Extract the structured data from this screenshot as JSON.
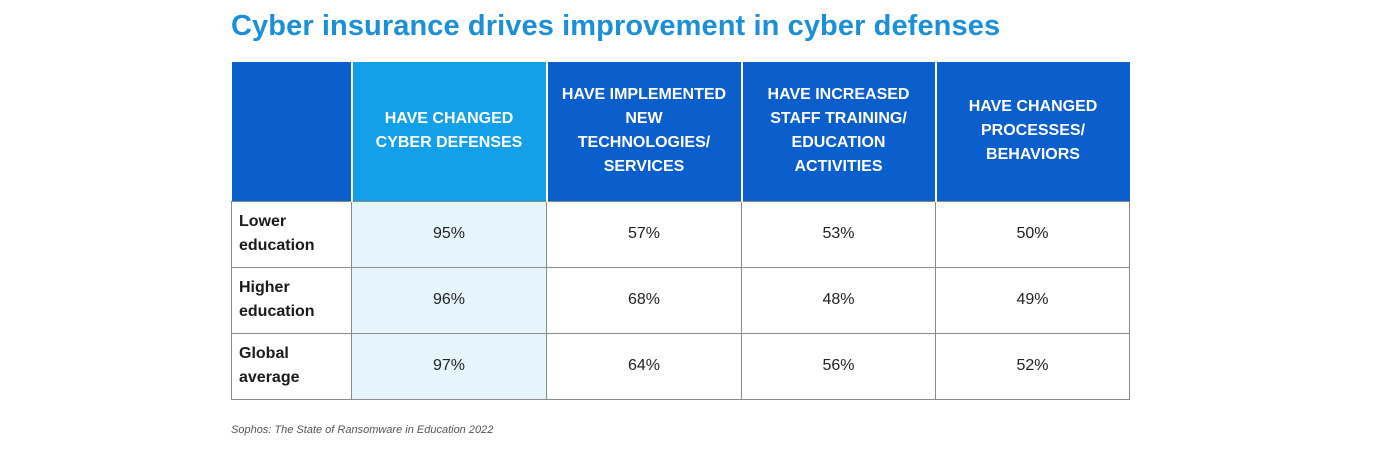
{
  "chart_data": {
    "type": "table",
    "title": "Cyber insurance drives improvement in cyber defenses",
    "columns": [
      "",
      "HAVE CHANGED CYBER DEFENSES",
      "HAVE IMPLEMENTED NEW TECHNOLOGIES/ SERVICES",
      "HAVE INCREASED STAFF TRAINING/ EDUCATION ACTIVITIES",
      "HAVE CHANGED PROCESSES/ BEHAVIORS"
    ],
    "rows": [
      {
        "label": "Lower education",
        "values": [
          "95%",
          "57%",
          "53%",
          "50%"
        ]
      },
      {
        "label": "Higher education",
        "values": [
          "96%",
          "68%",
          "48%",
          "49%"
        ]
      },
      {
        "label": "Global average",
        "values": [
          "97%",
          "64%",
          "56%",
          "52%"
        ]
      }
    ],
    "highlighted_column": 1,
    "source": "Sophos: The State of Ransomware in Education 2022"
  },
  "colors": {
    "title": "#1b8fd8",
    "header": "#0b5fcc",
    "header_highlight": "#12a0e8",
    "cell_highlight": "#e6f4fc",
    "border": "#8a8a8a"
  }
}
